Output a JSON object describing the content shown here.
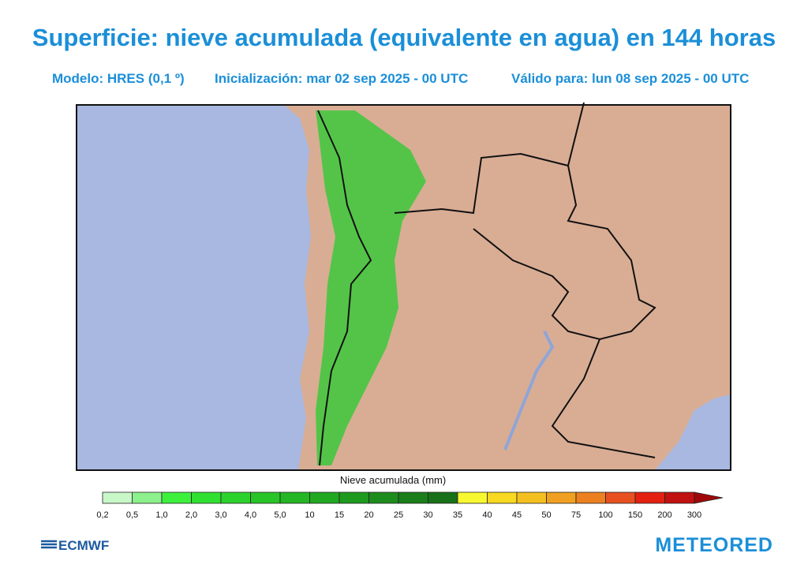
{
  "header": {
    "title": "Superficie: nieve acumulada (equivalente en agua) en 144 horas",
    "model": "Modelo: HRES (0,1 º)",
    "init": "Inicialización: mar 02 sep 2025 - 00 UTC",
    "valid": "Válido para: lun 08 sep 2025 - 00 UTC"
  },
  "legend": {
    "title": "Nieve acumulada (mm)",
    "labels": [
      "0,2",
      "0,5",
      "1,0",
      "2,0",
      "3,0",
      "4,0",
      "5,0",
      "10",
      "15",
      "20",
      "25",
      "30",
      "35",
      "40",
      "45",
      "50",
      "75",
      "100",
      "150",
      "200",
      "300"
    ],
    "colors": [
      "#c8f7c8",
      "#8cf08c",
      "#3cf03c",
      "#30e030",
      "#2cd22c",
      "#28c428",
      "#24b624",
      "#20a820",
      "#1e9a1e",
      "#1c8c1c",
      "#1a7e1a",
      "#187018",
      "#f8f830",
      "#f8d820",
      "#f4c020",
      "#f0a020",
      "#ec8020",
      "#e85020",
      "#e42010",
      "#c01010",
      "#a00808"
    ]
  },
  "footer": {
    "left": "ECMWF",
    "right": "METEORED"
  }
}
